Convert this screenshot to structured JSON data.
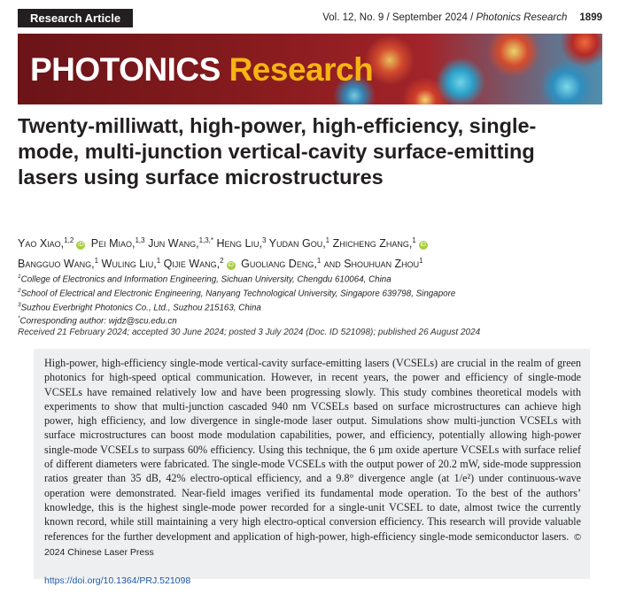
{
  "header": {
    "label": "Research Article",
    "citation": "Vol. 12, No. 9 / September 2024 / ",
    "journal_italic": "Photonics Research",
    "page": "1899"
  },
  "banner": {
    "word1": "PHOTONICS",
    "word2": "Research"
  },
  "title": "Twenty-milliwatt, high-power, high-efficiency, single-mode, multi-junction vertical-cavity surface-emitting lasers using surface microstructures",
  "authors": [
    {
      "name": "Yao Xiao,",
      "sup": "1,2",
      "orcid": true
    },
    {
      "name": "Pei Miao,",
      "sup": "1,3",
      "orcid": false
    },
    {
      "name": "Jun Wang,",
      "sup": "1,3,*",
      "orcid": false
    },
    {
      "name": "Heng Liu,",
      "sup": "3",
      "orcid": false
    },
    {
      "name": "Yudan Gou,",
      "sup": "1",
      "orcid": false
    },
    {
      "name": "Zhicheng Zhang,",
      "sup": "1",
      "orcid": true
    },
    {
      "name": "Bangguo Wang,",
      "sup": "1",
      "orcid": false
    },
    {
      "name": "Wuling Liu,",
      "sup": "1",
      "orcid": false
    },
    {
      "name": "Qijie Wang,",
      "sup": "2",
      "orcid": true
    },
    {
      "name": "Guoliang Deng,",
      "sup": "1",
      "orcid": false
    },
    {
      "name": "and Shouhuan Zhou",
      "sup": "1",
      "orcid": false
    }
  ],
  "affiliations": [
    {
      "mark": "1",
      "text": "College of Electronics and Information Engineering, Sichuan University, Chengdu 610064, China"
    },
    {
      "mark": "2",
      "text": "School of Electrical and Electronic Engineering, Nanyang Technological University, Singapore 639798, Singapore"
    },
    {
      "mark": "3",
      "text": "Suzhou Everbright Photonics Co., Ltd., Suzhou 215163, China"
    },
    {
      "mark": "*",
      "text": "Corresponding author: wjdz@scu.edu.cn"
    }
  ],
  "history": "Received 21 February 2024; accepted 30 June 2024; posted 3 July 2024 (Doc. ID 521098); published 26 August 2024",
  "abstract": "High-power, high-efficiency single-mode vertical-cavity surface-emitting lasers (VCSELs) are crucial in the realm of green photonics for high-speed optical communication. However, in recent years, the power and efficiency of single-mode VCSELs have remained relatively low and have been progressing slowly. This study combines theoretical models with experiments to show that multi-junction cascaded 940 nm VCSELs based on surface microstructures can achieve high power, high efficiency, and low divergence in single-mode laser output. Simulations show multi-junction VCSELs with surface microstructures can boost mode modulation capabilities, power, and efficiency, potentially allowing high-power single-mode VCSELs to surpass 60% efficiency. Using this technique, the 6 µm oxide aperture VCSELs with surface relief of different diameters were fabricated. The single-mode VCSELs with the output power of 20.2 mW, side-mode suppression ratios greater than 35 dB, 42% electro-optical efficiency, and a 9.8° divergence angle (at 1/e²) under continuous-wave operation were demonstrated. Near-field images verified its fundamental mode operation. To the best of the authors’ knowledge, this is the highest single-mode power recorded for a single-unit VCSEL to date, almost twice the currently known record, while still maintaining a very high electro-optical conversion efficiency. This research will provide valuable references for the further development and application of high-power, high-efficiency single-mode semiconductor lasers.",
  "copyright": "© 2024 Chinese Laser Press",
  "doi": "https://doi.org/10.1364/PRJ.521098"
}
